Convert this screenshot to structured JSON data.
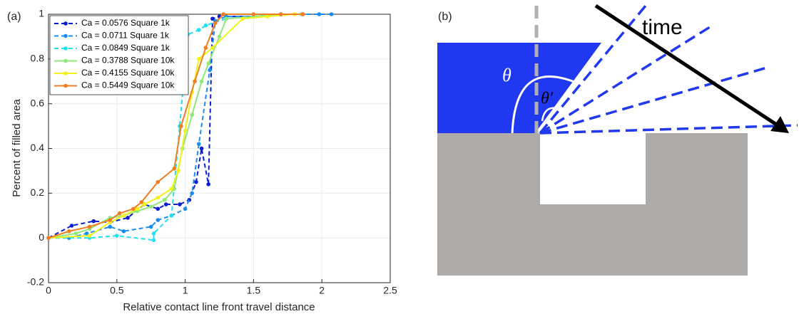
{
  "chart_data": {
    "type": "line",
    "panel_label": "(a)",
    "x_label": "Relative contact line front travel distance",
    "y_label": "Percent of filled area",
    "xlim": [
      0,
      2.5
    ],
    "ylim": [
      -0.2,
      1
    ],
    "xticks": [
      0,
      0.5,
      1,
      1.5,
      2,
      2.5
    ],
    "yticks": [
      -0.2,
      0,
      0.2,
      0.4,
      0.6,
      0.8,
      1
    ],
    "grid": true,
    "legend": "upper left",
    "series": [
      {
        "name": "Ca = 0.0576 Square 1k",
        "color": "#0a1ed0",
        "dashed": true,
        "x": [
          0,
          0.17,
          0.33,
          0.45,
          0.58,
          0.7,
          0.8,
          0.86,
          0.96,
          1.03,
          1.08,
          1.12,
          1.17,
          1.2,
          1.25,
          1.5,
          1.7,
          1.86
        ],
        "values": [
          0,
          0.055,
          0.075,
          0.07,
          0.09,
          0.15,
          0.13,
          0.15,
          0.15,
          0.17,
          0.25,
          0.4,
          0.24,
          0.98,
          0.99,
          0.99,
          1,
          1
        ]
      },
      {
        "name": "Ca = 0.0711 Square 1k",
        "color": "#1a8cf0",
        "dashed": true,
        "x": [
          0,
          0.15,
          0.28,
          0.45,
          0.55,
          0.75,
          0.8,
          0.9,
          1.0,
          1.05,
          1.1,
          1.18,
          1.22,
          1.3,
          1.5,
          1.7,
          1.98,
          2.07
        ],
        "values": [
          0,
          0,
          0.02,
          0.05,
          0.03,
          0.05,
          0.08,
          0.1,
          0.13,
          0.2,
          0.42,
          0.75,
          0.97,
          0.99,
          0.99,
          1,
          1,
          1
        ]
      },
      {
        "name": "Ca = 0.0849 Square 1k",
        "color": "#22e0f0",
        "dashed": true,
        "x": [
          0,
          0.3,
          0.5,
          0.77,
          0.77,
          0.9,
          0.96,
          1.02,
          1.1,
          1.15,
          1.3,
          1.5,
          1.7
        ],
        "values": [
          0,
          0,
          0.01,
          -0.01,
          0.02,
          0.1,
          0.5,
          0.91,
          0.93,
          0.95,
          0.98,
          0.99,
          1
        ]
      },
      {
        "name": "Ca = 0.3788 Square 10k",
        "color": "#8ee87a",
        "dashed": false,
        "x": [
          0,
          0.2,
          0.3,
          0.45,
          0.55,
          0.65,
          0.75,
          0.85,
          0.92,
          0.98,
          1.05,
          1.12,
          1.17,
          1.25,
          1.3,
          1.5,
          1.7,
          1.85
        ],
        "values": [
          0,
          0.02,
          0.04,
          0.09,
          0.1,
          0.12,
          0.14,
          0.17,
          0.22,
          0.4,
          0.55,
          0.7,
          0.78,
          0.9,
          0.98,
          0.99,
          1,
          1
        ]
      },
      {
        "name": "Ca = 0.4155 Square 10k",
        "color": "#f2f21a",
        "dashed": false,
        "x": [
          0,
          0.3,
          0.45,
          0.55,
          0.65,
          0.7,
          0.8,
          0.9,
          0.95,
          1.0,
          1.05,
          1.1,
          1.2,
          1.42,
          1.6,
          1.8
        ],
        "values": [
          0,
          0.01,
          0.07,
          0.1,
          0.13,
          0.15,
          0.18,
          0.22,
          0.3,
          0.48,
          0.65,
          0.8,
          0.85,
          0.98,
          0.99,
          1
        ]
      },
      {
        "name": "Ca = 0.5449 Square 10k",
        "color": "#f07d22",
        "dashed": false,
        "x": [
          0,
          0.15,
          0.3,
          0.45,
          0.52,
          0.62,
          0.68,
          0.8,
          0.92,
          0.97,
          1.07,
          1.15,
          1.22,
          1.28,
          1.5,
          1.7,
          1.86
        ],
        "values": [
          0,
          0.03,
          0.05,
          0.08,
          0.11,
          0.13,
          0.16,
          0.25,
          0.31,
          0.5,
          0.7,
          0.85,
          0.96,
          1,
          1,
          1,
          1
        ]
      }
    ]
  },
  "diagram": {
    "panel_label": "(b)",
    "arrow_label": "time",
    "angle_label": "θ",
    "angle_label_2": "θ′"
  }
}
